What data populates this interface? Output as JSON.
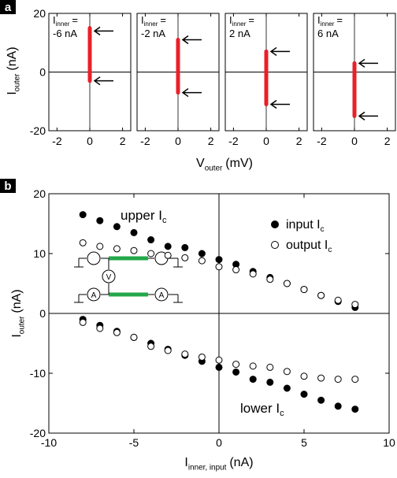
{
  "panel_labels": [
    "a",
    "b"
  ],
  "colors": {
    "bar": "#e8202a",
    "axis": "#000000",
    "input_marker": "#000000",
    "output_marker": "#ffffff",
    "wire": "#22a84a"
  },
  "chart_data": [
    {
      "type": "bar",
      "panel": "a",
      "xlabel_main": "V",
      "xlabel_sub": "outer",
      "xlabel_unit": "(mV)",
      "ylabel_main": "I",
      "ylabel_sub": "outer",
      "ylabel_unit": "(nA)",
      "xlim": [
        -2.5,
        2.5
      ],
      "ylim": [
        -20,
        20
      ],
      "xticks": [
        "-2",
        "0",
        "2"
      ],
      "yticks": [
        "20",
        "0",
        "-20"
      ],
      "subplots": [
        {
          "label_main": "I",
          "label_sub": "inner",
          "label_eq": "=",
          "label_value": "-6 nA",
          "x": 0,
          "ymin": -3,
          "ymax": 15,
          "arrows_y": [
            14,
            -3
          ]
        },
        {
          "label_main": "I",
          "label_sub": "inner",
          "label_eq": "=",
          "label_value": "-2 nA",
          "x": 0,
          "ymin": -7,
          "ymax": 11,
          "arrows_y": [
            11,
            -7
          ]
        },
        {
          "label_main": "I",
          "label_sub": "inner",
          "label_eq": "=",
          "label_value": "2 nA",
          "x": 0,
          "ymin": -11,
          "ymax": 7,
          "arrows_y": [
            7,
            -11
          ]
        },
        {
          "label_main": "I",
          "label_sub": "inner",
          "label_eq": "=",
          "label_value": "6 nA",
          "x": 0,
          "ymin": -15,
          "ymax": 3,
          "arrows_y": [
            3,
            -15
          ]
        }
      ]
    },
    {
      "type": "scatter",
      "panel": "b",
      "xlabel_main": "I",
      "xlabel_sub": "inner, input",
      "xlabel_unit": "(nA)",
      "ylabel_main": "I",
      "ylabel_sub": "outer",
      "ylabel_unit": "(nA)",
      "xlim": [
        -10,
        10
      ],
      "ylim": [
        -20,
        20
      ],
      "xticks": [
        "-10",
        "-5",
        "0",
        "5",
        "10"
      ],
      "yticks": [
        "20",
        "10",
        "0",
        "-10",
        "-20"
      ],
      "legend": [
        {
          "main": "input I",
          "sub": "c",
          "marker": "filled"
        },
        {
          "main": "output I",
          "sub": "c",
          "marker": "open"
        }
      ],
      "annotations": {
        "upper": {
          "main": "upper I",
          "sub": "c"
        },
        "lower": {
          "main": "lower I",
          "sub": "c"
        }
      },
      "x": [
        -8,
        -7,
        -6,
        -5,
        -4,
        -3,
        -2,
        -1,
        0,
        1,
        2,
        3,
        4,
        5,
        6,
        7,
        8
      ],
      "series": [
        {
          "name": "input I_c upper",
          "marker": "filled",
          "values": [
            16.5,
            15.5,
            14.5,
            13.5,
            12.3,
            11.2,
            11.0,
            10.0,
            9.0,
            8.2,
            7.0,
            6.0,
            5.0,
            4.0,
            3.0,
            2.0,
            1.0
          ]
        },
        {
          "name": "output I_c upper",
          "marker": "open",
          "values": [
            11.8,
            11.2,
            10.8,
            10.5,
            10.0,
            9.7,
            9.3,
            8.8,
            7.8,
            7.3,
            6.6,
            5.7,
            5.0,
            4.0,
            3.0,
            2.2,
            1.5
          ]
        },
        {
          "name": "input I_c lower",
          "marker": "filled",
          "values": [
            -1.0,
            -2.0,
            -3.0,
            -4.0,
            -5.0,
            -6.0,
            -7.0,
            -8.0,
            -9.0,
            -9.8,
            -11.0,
            -11.5,
            -12.5,
            -13.5,
            -14.5,
            -15.5,
            -16.0
          ]
        },
        {
          "name": "output I_c lower",
          "marker": "open",
          "values": [
            -1.5,
            -2.5,
            -3.2,
            -4.0,
            -5.5,
            -6.2,
            -6.8,
            -7.3,
            -7.8,
            -8.5,
            -8.8,
            -9.0,
            -9.7,
            -10.5,
            -10.8,
            -11.0,
            -11.0
          ]
        }
      ],
      "inset": {
        "labels": [
          "V",
          "A",
          "A"
        ]
      }
    }
  ]
}
